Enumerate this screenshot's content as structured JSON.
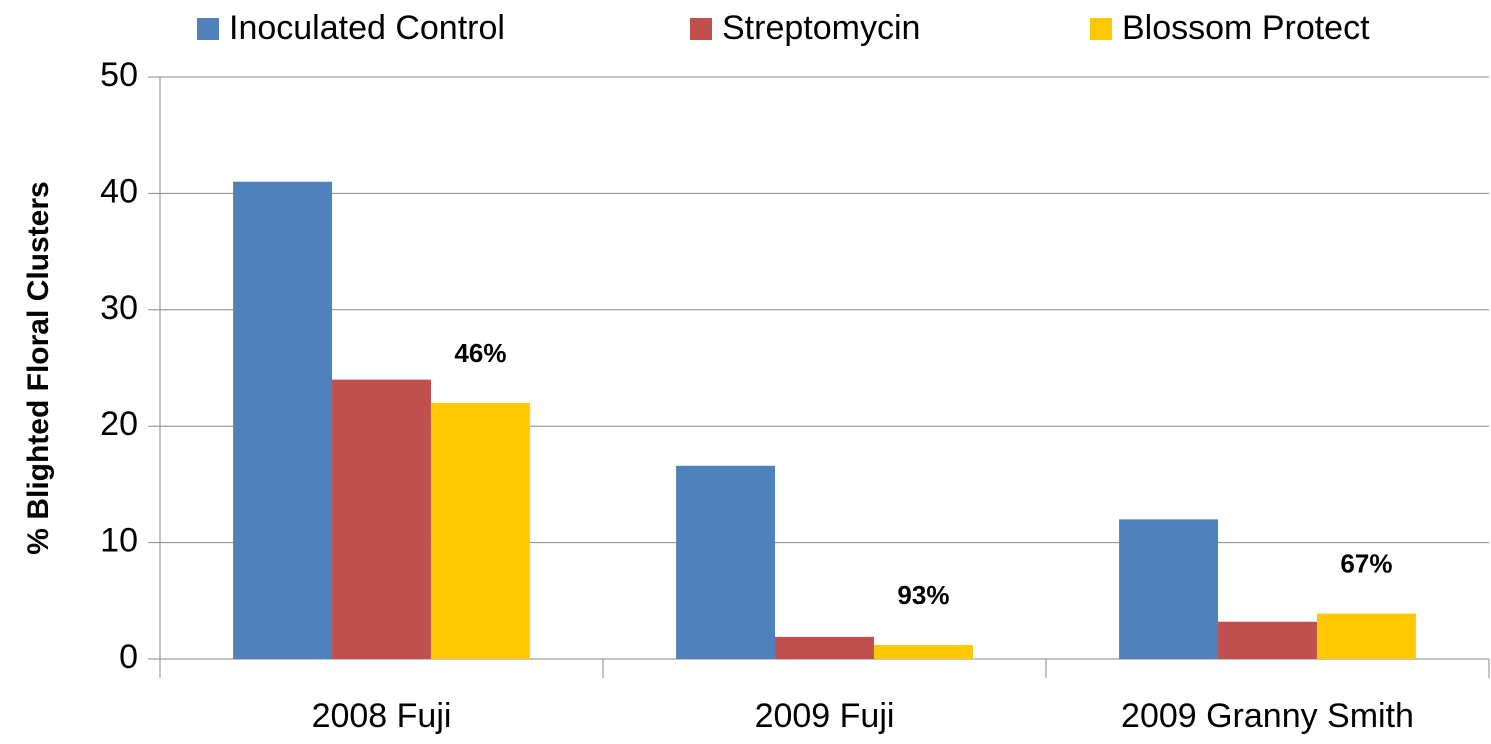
{
  "chart_data": {
    "type": "bar",
    "y_axis_label": "% Blighted Floral Clusters",
    "categories": [
      "2008 Fuji",
      "2009 Fuji",
      "2009 Granny Smith"
    ],
    "series": [
      {
        "name": "Inoculated Control",
        "color": "#4f81bd",
        "values": [
          41,
          16.6,
          12
        ]
      },
      {
        "name": "Streptomycin",
        "color": "#c0504d",
        "values": [
          24,
          1.9,
          3.2
        ]
      },
      {
        "name": "Blossom Protect",
        "color": "#ffc800",
        "values": [
          22,
          1.2,
          3.9
        ],
        "annotations": [
          "46%",
          "93%",
          "67%"
        ]
      }
    ],
    "ylim": [
      0,
      50
    ],
    "yticks": [
      0,
      10,
      20,
      30,
      40,
      50
    ],
    "grid": true,
    "legend": "top"
  }
}
